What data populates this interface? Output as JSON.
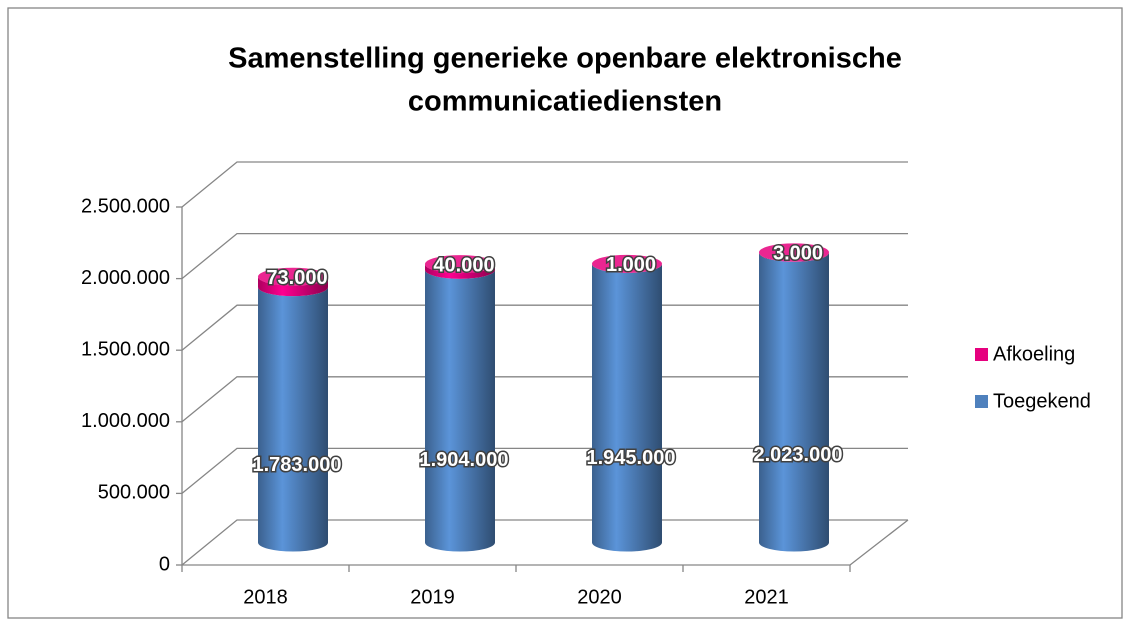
{
  "chart_data": {
    "type": "bar3d-stacked",
    "title": "Samenstelling generieke openbare elektronische communicatiediensten",
    "categories": [
      "2018",
      "2019",
      "2020",
      "2021"
    ],
    "series": [
      {
        "name": "Toegekend",
        "color": "#4f81bd",
        "values": [
          1783000,
          1904000,
          1945000,
          2023000
        ],
        "value_labels": [
          "1.783.000",
          "1.904.000",
          "1.945.000",
          "2.023.000"
        ]
      },
      {
        "name": "Afkoeling",
        "color": "#e6007e",
        "values": [
          73000,
          40000,
          1000,
          3000
        ],
        "value_labels": [
          "73.000",
          "40.000",
          "1.000",
          "3.000"
        ]
      }
    ],
    "ylim": [
      0,
      2500000
    ],
    "yticks": [
      0,
      {
        "value": 500000,
        "label": "500.000"
      },
      {
        "value": 1000000,
        "label": "1.000.000"
      },
      {
        "value": 1500000,
        "label": "1.500.000"
      },
      {
        "value": 2000000,
        "label": "2.000.000"
      },
      {
        "value": 2500000,
        "label": "2.500.000"
      }
    ],
    "grid": true,
    "legend": "right"
  }
}
